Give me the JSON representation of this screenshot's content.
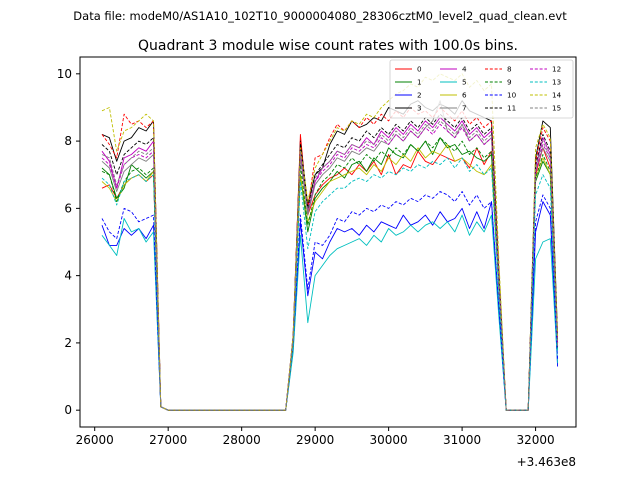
{
  "suptitle": "Data file: modeM0/AS1A10_102T10_9000004080_28306cztM0_level2_quad_clean.evt",
  "chart_data": {
    "type": "line",
    "title": "Quadrant 3 module wise count rates with 100.0s bins.",
    "xlabel": "",
    "ylabel": "",
    "x_offset_label": "+3.463e8",
    "xlim": [
      25800,
      32550
    ],
    "ylim": [
      -0.5,
      10.5
    ],
    "x_ticks": [
      26000,
      27000,
      28000,
      29000,
      30000,
      31000,
      32000
    ],
    "y_ticks": [
      0,
      2,
      4,
      6,
      8,
      10
    ],
    "x_tick_labels": [
      "26000",
      "27000",
      "28000",
      "29000",
      "30000",
      "31000",
      "32000"
    ],
    "y_tick_labels": [
      "0",
      "2",
      "4",
      "6",
      "8",
      "10"
    ],
    "legend_position": "top-right",
    "x": [
      26100,
      26200,
      26300,
      26400,
      26500,
      26600,
      26700,
      26800,
      26900,
      27000,
      27100,
      27200,
      27300,
      27400,
      27500,
      27600,
      27700,
      27800,
      27900,
      28000,
      28100,
      28200,
      28300,
      28400,
      28500,
      28600,
      28700,
      28800,
      28900,
      29000,
      29100,
      29200,
      29300,
      29400,
      29500,
      29600,
      29700,
      29800,
      29900,
      30000,
      30100,
      30200,
      30300,
      30400,
      30500,
      30600,
      30700,
      30800,
      30900,
      31000,
      31100,
      31200,
      31300,
      31400,
      31500,
      31600,
      31700,
      31800,
      31900,
      32000,
      32100,
      32200,
      32300
    ],
    "series": [
      {
        "name": "0",
        "color": "#ff0000",
        "dash": "solid",
        "values": [
          6.6,
          6.7,
          6.3,
          6.7,
          6.9,
          7.0,
          6.8,
          7.0,
          0.1,
          0,
          0,
          0,
          0,
          0,
          0,
          0,
          0,
          0,
          0,
          0,
          0,
          0,
          0,
          0,
          0,
          0,
          2.0,
          8.2,
          5.8,
          6.4,
          6.7,
          6.9,
          7.0,
          7.2,
          7.0,
          7.3,
          7.1,
          7.4,
          7.0,
          7.6,
          7.0,
          7.3,
          7.2,
          7.7,
          7.4,
          7.3,
          7.6,
          7.5,
          7.4,
          7.5,
          7.2,
          7.8,
          7.3,
          7.7,
          3.8,
          0,
          0,
          0,
          0,
          7.0,
          7.8,
          7.2,
          2.0
        ]
      },
      {
        "name": "1",
        "color": "#008000",
        "dash": "solid",
        "values": [
          7.2,
          7.0,
          6.3,
          6.6,
          7.3,
          7.1,
          6.9,
          7.1,
          0.1,
          0,
          0,
          0,
          0,
          0,
          0,
          0,
          0,
          0,
          0,
          0,
          0,
          0,
          0,
          0,
          0,
          0,
          2.0,
          7.0,
          5.3,
          6.3,
          6.6,
          6.8,
          7.1,
          6.9,
          7.3,
          7.4,
          7.1,
          7.5,
          7.3,
          7.8,
          7.6,
          7.5,
          7.9,
          7.7,
          8.0,
          7.6,
          8.1,
          7.8,
          7.9,
          7.6,
          7.7,
          7.5,
          7.4,
          7.6,
          3.8,
          0,
          0,
          0,
          0,
          6.8,
          7.4,
          7.0,
          1.8
        ]
      },
      {
        "name": "2",
        "color": "#0000ff",
        "dash": "solid",
        "values": [
          5.5,
          4.9,
          4.9,
          5.4,
          5.2,
          5.4,
          5.1,
          5.5,
          0.1,
          0,
          0,
          0,
          0,
          0,
          0,
          0,
          0,
          0,
          0,
          0,
          0,
          0,
          0,
          0,
          0,
          0,
          1.8,
          5.6,
          3.4,
          4.7,
          4.5,
          5.0,
          5.4,
          5.3,
          5.4,
          5.2,
          5.5,
          5.3,
          5.6,
          5.5,
          5.4,
          5.8,
          5.5,
          5.6,
          5.8,
          5.5,
          5.9,
          5.6,
          5.7,
          6.0,
          5.4,
          5.9,
          5.4,
          6.2,
          3.0,
          0,
          0,
          0,
          0,
          5.3,
          6.2,
          5.8,
          1.3
        ]
      },
      {
        "name": "3",
        "color": "#000000",
        "dash": "solid",
        "values": [
          8.2,
          8.1,
          7.4,
          8.0,
          8.1,
          8.4,
          8.3,
          8.6,
          0.1,
          0,
          0,
          0,
          0,
          0,
          0,
          0,
          0,
          0,
          0,
          0,
          0,
          0,
          0,
          0,
          0,
          0,
          2.2,
          8.0,
          6.1,
          7.0,
          7.2,
          7.9,
          8.3,
          8.2,
          8.6,
          8.4,
          8.5,
          8.7,
          8.6,
          9.0,
          8.9,
          8.8,
          9.1,
          9.2,
          9.0,
          8.9,
          9.1,
          9.0,
          8.8,
          9.2,
          8.9,
          8.8,
          8.7,
          8.6,
          4.2,
          0,
          0,
          0,
          0,
          7.5,
          8.6,
          8.4,
          2.2
        ]
      },
      {
        "name": "4",
        "color": "#bf00bf",
        "dash": "solid",
        "values": [
          7.7,
          7.4,
          6.6,
          7.5,
          7.6,
          7.8,
          7.7,
          8.0,
          0.1,
          0,
          0,
          0,
          0,
          0,
          0,
          0,
          0,
          0,
          0,
          0,
          0,
          0,
          0,
          0,
          0,
          0,
          2.1,
          7.7,
          5.9,
          6.8,
          7.2,
          7.4,
          7.7,
          7.6,
          7.9,
          7.8,
          8.1,
          7.9,
          8.3,
          8.1,
          8.4,
          8.2,
          8.5,
          8.3,
          8.6,
          8.4,
          8.7,
          8.5,
          8.3,
          8.6,
          8.2,
          8.4,
          8.1,
          8.3,
          4.0,
          0,
          0,
          0,
          0,
          7.2,
          8.1,
          7.6,
          2.0
        ]
      },
      {
        "name": "5",
        "color": "#00bfbf",
        "dash": "solid",
        "values": [
          5.2,
          4.9,
          4.6,
          5.7,
          5.3,
          5.4,
          5.0,
          5.3,
          0.1,
          0,
          0,
          0,
          0,
          0,
          0,
          0,
          0,
          0,
          0,
          0,
          0,
          0,
          0,
          0,
          0,
          0,
          1.7,
          5.2,
          2.6,
          4.0,
          4.3,
          4.6,
          4.8,
          4.9,
          5.0,
          5.1,
          4.9,
          5.2,
          5.0,
          5.4,
          5.2,
          5.3,
          5.5,
          5.3,
          5.5,
          5.6,
          5.4,
          5.6,
          5.3,
          5.8,
          5.2,
          5.6,
          5.3,
          5.8,
          2.8,
          0,
          0,
          0,
          0,
          4.5,
          5.0,
          5.1,
          1.4
        ]
      },
      {
        "name": "6",
        "color": "#bfbf00",
        "dash": "solid",
        "values": [
          6.8,
          6.6,
          6.2,
          6.7,
          6.9,
          7.0,
          6.8,
          7.1,
          0.1,
          0,
          0,
          0,
          0,
          0,
          0,
          0,
          0,
          0,
          0,
          0,
          0,
          0,
          0,
          0,
          0,
          0,
          2.0,
          7.0,
          5.6,
          6.2,
          6.5,
          6.8,
          6.9,
          7.0,
          7.1,
          7.2,
          7.0,
          7.3,
          7.1,
          7.5,
          7.3,
          7.6,
          7.4,
          7.8,
          7.5,
          7.7,
          7.6,
          7.9,
          7.4,
          7.5,
          7.3,
          7.1,
          7.0,
          7.3,
          3.6,
          0,
          0,
          0,
          0,
          6.9,
          7.5,
          7.0,
          1.8
        ]
      },
      {
        "name": "7",
        "color": "#808080",
        "dash": "solid",
        "values": [
          7.4,
          7.2,
          6.5,
          7.1,
          7.3,
          7.5,
          7.4,
          7.6,
          0.1,
          0,
          0,
          0,
          0,
          0,
          0,
          0,
          0,
          0,
          0,
          0,
          0,
          0,
          0,
          0,
          0,
          0,
          2.1,
          7.5,
          5.8,
          6.7,
          7.0,
          7.2,
          7.5,
          7.4,
          7.7,
          7.6,
          7.8,
          7.7,
          8.0,
          7.9,
          8.2,
          8.0,
          8.3,
          8.1,
          8.4,
          8.6,
          9.2,
          8.3,
          8.1,
          8.5,
          8.0,
          8.2,
          7.9,
          8.1,
          3.9,
          0,
          0,
          0,
          0,
          7.1,
          7.8,
          7.4,
          1.9
        ]
      },
      {
        "name": "8",
        "color": "#ff0000",
        "dash": "dashed",
        "values": [
          8.2,
          7.9,
          7.5,
          8.8,
          8.5,
          8.6,
          8.4,
          8.6,
          0.1,
          0,
          0,
          0,
          0,
          0,
          0,
          0,
          0,
          0,
          0,
          0,
          0,
          0,
          0,
          0,
          0,
          0,
          2.2,
          8.0,
          6.0,
          7.5,
          7.6,
          8.1,
          8.5,
          8.3,
          8.6,
          8.4,
          8.7,
          8.5,
          8.8,
          8.6,
          8.9,
          8.7,
          9.0,
          8.8,
          8.9,
          8.7,
          9.0,
          8.8,
          8.6,
          8.9,
          8.5,
          8.7,
          8.4,
          8.6,
          4.1,
          0,
          0,
          0,
          0,
          7.4,
          8.4,
          8.0,
          2.1
        ]
      },
      {
        "name": "9",
        "color": "#008000",
        "dash": "dashed",
        "values": [
          7.1,
          7.0,
          6.2,
          6.8,
          7.1,
          7.2,
          7.0,
          7.2,
          0.1,
          0,
          0,
          0,
          0,
          0,
          0,
          0,
          0,
          0,
          0,
          0,
          0,
          0,
          0,
          0,
          0,
          0,
          2.0,
          7.3,
          5.5,
          6.4,
          6.8,
          7.0,
          7.3,
          7.2,
          7.5,
          7.3,
          7.6,
          7.4,
          7.7,
          7.5,
          7.8,
          7.6,
          7.9,
          7.7,
          8.0,
          7.8,
          8.1,
          7.9,
          7.7,
          8.0,
          7.6,
          7.8,
          7.5,
          7.7,
          3.7,
          0,
          0,
          0,
          0,
          6.9,
          7.6,
          7.1,
          1.8
        ]
      },
      {
        "name": "10",
        "color": "#0000ff",
        "dash": "dashed",
        "values": [
          5.7,
          5.3,
          5.1,
          6.0,
          5.9,
          5.6,
          5.7,
          5.8,
          0.1,
          0,
          0,
          0,
          0,
          0,
          0,
          0,
          0,
          0,
          0,
          0,
          0,
          0,
          0,
          0,
          0,
          0,
          1.9,
          5.8,
          3.6,
          5.0,
          4.9,
          5.2,
          5.7,
          5.6,
          5.9,
          5.8,
          6.0,
          5.9,
          6.1,
          6.0,
          6.2,
          6.1,
          6.3,
          6.2,
          6.4,
          6.3,
          6.5,
          6.4,
          6.2,
          6.5,
          6.1,
          6.4,
          6.0,
          6.2,
          3.1,
          0,
          0,
          0,
          0,
          5.6,
          6.4,
          6.0,
          1.5
        ]
      },
      {
        "name": "11",
        "color": "#000000",
        "dash": "dashed",
        "values": [
          7.9,
          7.7,
          7.0,
          7.6,
          7.8,
          8.0,
          7.9,
          8.1,
          0.1,
          0,
          0,
          0,
          0,
          0,
          0,
          0,
          0,
          0,
          0,
          0,
          0,
          0,
          0,
          0,
          0,
          0,
          2.1,
          7.9,
          6.0,
          7.0,
          7.3,
          7.6,
          7.9,
          7.8,
          8.1,
          8.0,
          8.3,
          8.1,
          8.4,
          8.2,
          8.5,
          8.3,
          8.6,
          8.4,
          8.7,
          8.5,
          8.8,
          8.6,
          8.4,
          8.7,
          8.3,
          8.5,
          8.2,
          8.4,
          4.0,
          0,
          0,
          0,
          0,
          7.3,
          8.2,
          7.7,
          2.0
        ]
      },
      {
        "name": "12",
        "color": "#bf00bf",
        "dash": "dashed",
        "values": [
          7.5,
          7.3,
          6.6,
          7.3,
          7.5,
          7.6,
          7.5,
          7.7,
          0.1,
          0,
          0,
          0,
          0,
          0,
          0,
          0,
          0,
          0,
          0,
          0,
          0,
          0,
          0,
          0,
          0,
          0,
          2.1,
          7.6,
          5.9,
          6.8,
          7.1,
          7.3,
          7.6,
          7.5,
          7.8,
          7.7,
          7.9,
          7.8,
          8.1,
          7.9,
          8.2,
          8.0,
          8.3,
          8.1,
          8.4,
          8.2,
          8.5,
          8.3,
          8.1,
          8.4,
          8.0,
          8.2,
          7.9,
          8.1,
          3.9,
          0,
          0,
          0,
          0,
          7.1,
          7.9,
          7.5,
          1.9
        ]
      },
      {
        "name": "13",
        "color": "#00bfbf",
        "dash": "dashed",
        "values": [
          6.9,
          6.7,
          6.1,
          6.8,
          6.9,
          7.0,
          6.8,
          7.0,
          0.1,
          0,
          0,
          0,
          0,
          0,
          0,
          0,
          0,
          0,
          0,
          0,
          0,
          0,
          0,
          0,
          0,
          0,
          1.9,
          6.8,
          4.8,
          5.9,
          6.2,
          6.4,
          6.6,
          6.6,
          6.8,
          6.9,
          6.8,
          7.0,
          6.9,
          7.1,
          7.0,
          7.2,
          7.1,
          7.3,
          7.2,
          7.4,
          7.3,
          7.5,
          7.2,
          7.5,
          7.1,
          7.3,
          7.0,
          7.2,
          3.5,
          0,
          0,
          0,
          0,
          6.4,
          7.0,
          6.6,
          1.7
        ]
      },
      {
        "name": "14",
        "color": "#bfbf00",
        "dash": "dashed",
        "values": [
          8.9,
          9.0,
          7.7,
          8.3,
          8.4,
          8.6,
          8.8,
          8.6,
          0.1,
          0,
          0,
          0,
          0,
          0,
          0,
          0,
          0,
          0,
          0,
          0,
          0,
          0,
          0,
          0,
          0,
          0,
          2.2,
          7.8,
          6.2,
          7.2,
          7.6,
          8.0,
          8.4,
          8.3,
          8.6,
          8.5,
          8.8,
          8.7,
          9.0,
          9.2,
          9.4,
          9.5,
          9.7,
          9.6,
          9.9,
          9.8,
          10.0,
          9.9,
          9.8,
          10.0,
          9.6,
          9.8,
          9.5,
          9.7,
          4.5,
          0,
          0,
          0,
          0,
          7.8,
          8.5,
          8.1,
          2.2
        ]
      },
      {
        "name": "15",
        "color": "#808080",
        "dash": "dashed",
        "values": [
          7.6,
          7.5,
          6.7,
          7.3,
          7.5,
          7.7,
          7.6,
          7.8,
          0.1,
          0,
          0,
          0,
          0,
          0,
          0,
          0,
          0,
          0,
          0,
          0,
          0,
          0,
          0,
          0,
          0,
          0,
          2.1,
          7.7,
          5.9,
          6.9,
          7.2,
          7.4,
          7.7,
          7.6,
          7.9,
          7.8,
          8.0,
          7.9,
          8.2,
          8.0,
          8.3,
          8.1,
          8.4,
          8.2,
          8.5,
          8.3,
          8.6,
          8.4,
          8.2,
          8.5,
          8.1,
          8.3,
          8.0,
          8.2,
          3.9,
          0,
          0,
          0,
          0,
          7.2,
          8.0,
          7.5,
          1.9
        ]
      }
    ]
  }
}
